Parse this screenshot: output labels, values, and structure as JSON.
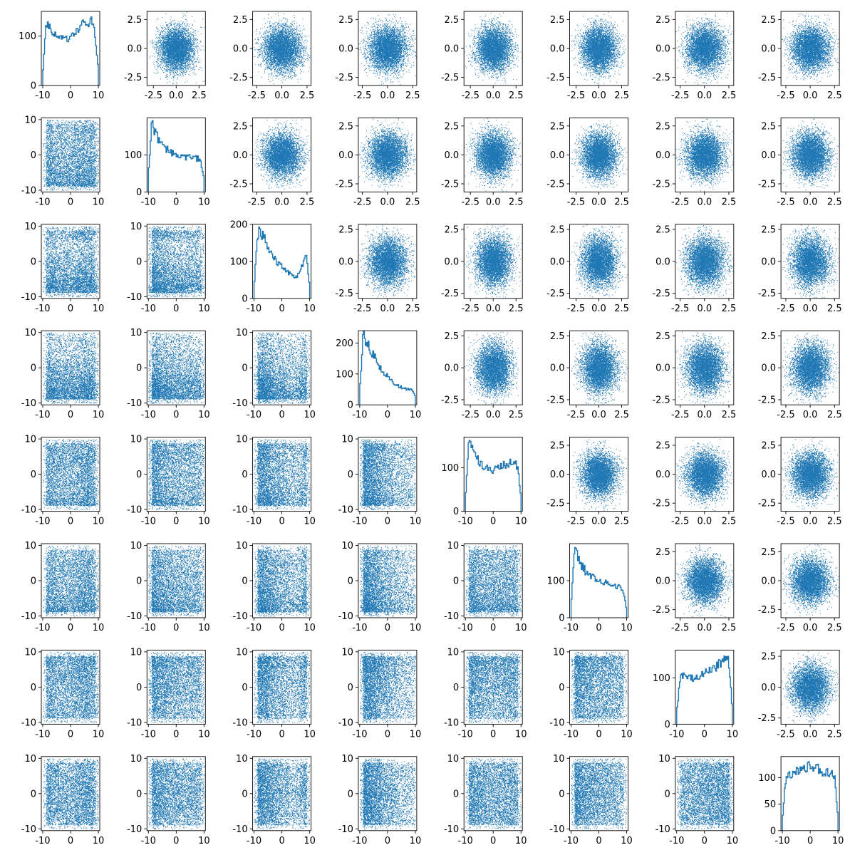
{
  "chart_data": {
    "type": "scatter",
    "title": "",
    "layout": "8x8 pair plot (scatter matrix): histogram on the diagonal, scatter plots elsewhere",
    "point_color": "#1f77b4",
    "hist_color": "#1f77b4",
    "grid": false,
    "legend": "none",
    "n_vars": 8,
    "samples_per_panel": 5000,
    "uniform_ticks": [
      "-10",
      "0",
      "10"
    ],
    "uniform_range": [
      -10.5,
      10.5
    ],
    "normal_ticks": [
      "-2.5",
      "0.0",
      "2.5"
    ],
    "normal_range": [
      -3.2,
      3.2
    ],
    "variables": [
      {
        "kind": "uniform",
        "axis_range": [
          -10.5,
          10.5
        ],
        "ticks": [
          "-10",
          "0",
          "10"
        ],
        "normal_ticks": [
          "-2.5",
          "0.0",
          "2.5"
        ],
        "normal_range": [
          -3.2,
          3.2
        ],
        "hist_ylim": [
          0,
          150
        ],
        "hist_yticks": [
          "0",
          "100"
        ],
        "hist_profile": [
          20,
          130,
          120,
          105,
          100,
          95,
          98,
          92,
          95,
          100,
          110,
          118,
          125,
          130,
          128,
          112,
          35
        ]
      },
      {
        "kind": "uniform",
        "axis_range": [
          -10.5,
          10.5
        ],
        "ticks": [
          "-10",
          "0",
          "10"
        ],
        "normal_ticks": [
          "-2.5",
          "0.0",
          "2.5"
        ],
        "normal_range": [
          -3.2,
          3.2
        ],
        "hist_ylim": [
          0,
          200
        ],
        "hist_yticks": [
          "0",
          "100"
        ],
        "hist_profile": [
          40,
          190,
          160,
          140,
          128,
          118,
          110,
          105,
          100,
          98,
          96,
          94,
          93,
          92,
          90,
          88,
          40
        ]
      },
      {
        "kind": "uniform",
        "axis_range": [
          -10.5,
          10.5
        ],
        "ticks": [
          "-10",
          "0",
          "10"
        ],
        "normal_ticks": [
          "-2.5",
          "0.0",
          "2.5"
        ],
        "normal_range": [
          -2.9,
          2.9
        ],
        "hist_ylim": [
          0,
          200
        ],
        "hist_yticks": [
          "0",
          "100",
          "200"
        ],
        "hist_profile": [
          30,
          175,
          180,
          160,
          140,
          120,
          105,
          95,
          85,
          75,
          68,
          62,
          58,
          65,
          90,
          115,
          30
        ]
      },
      {
        "kind": "uniform",
        "axis_range": [
          -10.5,
          10.5
        ],
        "ticks": [
          "-10",
          "0",
          "10"
        ],
        "normal_ticks": [
          "-2.5",
          "0.0",
          "2.5"
        ],
        "normal_range": [
          -2.9,
          2.9
        ],
        "hist_ylim": [
          0,
          240
        ],
        "hist_yticks": [
          "0",
          "100",
          "200"
        ],
        "hist_profile": [
          40,
          225,
          205,
          180,
          160,
          140,
          120,
          105,
          92,
          80,
          70,
          62,
          56,
          52,
          50,
          48,
          30
        ]
      },
      {
        "kind": "uniform",
        "axis_range": [
          -10.5,
          10.5
        ],
        "ticks": [
          "-10",
          "0",
          "10"
        ],
        "normal_ticks": [
          "-2.5",
          "0.0",
          "2.5"
        ],
        "normal_range": [
          -3.2,
          3.2
        ],
        "hist_ylim": [
          0,
          170
        ],
        "hist_yticks": [
          "0",
          "100"
        ],
        "hist_profile": [
          25,
          160,
          145,
          125,
          112,
          105,
          100,
          96,
          95,
          98,
          102,
          106,
          110,
          112,
          110,
          105,
          30
        ]
      },
      {
        "kind": "uniform",
        "axis_range": [
          -10.5,
          10.5
        ],
        "ticks": [
          "-10",
          "0",
          "10"
        ],
        "normal_ticks": [
          "-2.5",
          "0.0",
          "2.5"
        ],
        "normal_range": [
          -3.2,
          3.2
        ],
        "hist_ylim": [
          0,
          200
        ],
        "hist_yticks": [
          "0",
          "100"
        ],
        "hist_profile": [
          30,
          185,
          160,
          140,
          128,
          120,
          112,
          106,
          100,
          98,
          95,
          92,
          90,
          86,
          82,
          75,
          20
        ]
      },
      {
        "kind": "uniform",
        "axis_range": [
          -10.5,
          10.5
        ],
        "ticks": [
          "-10",
          "0",
          "10"
        ],
        "normal_ticks": [
          "-2.5",
          "0.0",
          "2.5"
        ],
        "normal_range": [
          -3.0,
          3.0
        ],
        "hist_ylim": [
          0,
          160
        ],
        "hist_yticks": [
          "0",
          "100"
        ],
        "hist_profile": [
          25,
          100,
          105,
          100,
          98,
          100,
          105,
          108,
          112,
          115,
          118,
          122,
          128,
          135,
          148,
          140,
          30
        ]
      },
      {
        "kind": "uniform",
        "axis_range": [
          -10.5,
          10.5
        ],
        "ticks": [
          "-10",
          "0",
          "10"
        ],
        "normal_ticks": [
          "-2.5",
          "0.0",
          "2.5"
        ],
        "normal_range": [
          -3.0,
          3.0
        ],
        "hist_ylim": [
          0,
          140
        ],
        "hist_yticks": [
          "0",
          "50",
          "100"
        ],
        "hist_profile": [
          20,
          100,
          105,
          110,
          112,
          115,
          118,
          120,
          125,
          122,
          118,
          115,
          112,
          110,
          108,
          100,
          25
        ]
      }
    ]
  }
}
